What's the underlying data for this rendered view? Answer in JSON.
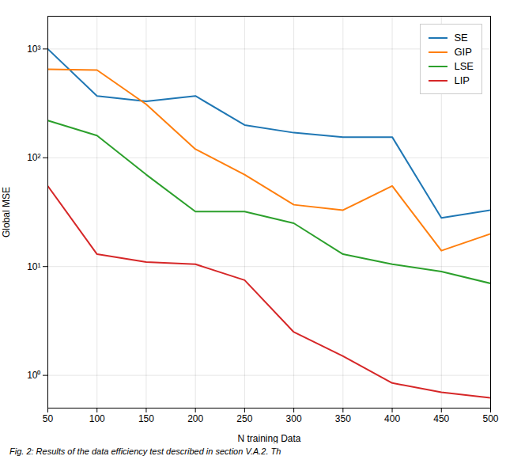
{
  "chart_data": {
    "type": "line",
    "x": [
      50,
      100,
      150,
      200,
      250,
      300,
      350,
      400,
      450,
      500
    ],
    "series": [
      {
        "name": "SE",
        "color": "#1f77b4",
        "values": [
          1000,
          370,
          330,
          370,
          200,
          170,
          155,
          155,
          28,
          33
        ]
      },
      {
        "name": "GIP",
        "color": "#ff7f0e",
        "values": [
          650,
          640,
          310,
          120,
          70,
          37,
          33,
          55,
          14,
          20
        ]
      },
      {
        "name": "LSE",
        "color": "#2ca02c",
        "values": [
          220,
          160,
          70,
          32,
          32,
          25,
          13,
          10.5,
          9,
          7
        ]
      },
      {
        "name": "LIP",
        "color": "#d62728",
        "values": [
          55,
          13,
          11,
          10.5,
          7.5,
          2.5,
          1.5,
          0.85,
          0.7,
          0.62
        ]
      }
    ],
    "xlabel": "N training Data",
    "ylabel": "Global MSE",
    "xlim": [
      50,
      500
    ],
    "xticks": [
      50,
      100,
      150,
      200,
      250,
      300,
      350,
      400,
      450,
      500
    ],
    "ylim": [
      0.5,
      2000
    ],
    "yticks": [
      {
        "value": 1,
        "label": "10⁰"
      },
      {
        "value": 10,
        "label": "10¹"
      },
      {
        "value": 100,
        "label": "10²"
      },
      {
        "value": 1000,
        "label": "10³"
      }
    ],
    "log": "y",
    "grid": true,
    "legend": "upper right",
    "caption": "Fig. 2: Results of the data efficiency test described in section V.A.2. Th"
  }
}
